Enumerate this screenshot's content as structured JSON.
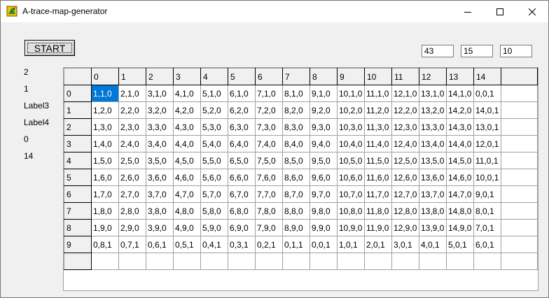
{
  "window": {
    "title": "A-trace-map-generator",
    "controls": {
      "minimize": "minimize-icon",
      "maximize": "maximize-icon",
      "close": "close-icon"
    }
  },
  "toolbar": {
    "start_label": "START"
  },
  "inputs": [
    "43",
    "15",
    "10"
  ],
  "labels": [
    "2",
    "1",
    "Label3",
    "Label4",
    "0",
    "14"
  ],
  "grid": {
    "columns": [
      "0",
      "1",
      "2",
      "3",
      "4",
      "5",
      "6",
      "7",
      "8",
      "9",
      "10",
      "11",
      "12",
      "13",
      "14",
      ""
    ],
    "rows": [
      {
        "header": "0",
        "cells": [
          "1,1,0",
          "2,1,0",
          "3,1,0",
          "4,1,0",
          "5,1,0",
          "6,1,0",
          "7,1,0",
          "8,1,0",
          "9,1,0",
          "10,1,0",
          "11,1,0",
          "12,1,0",
          "13,1,0",
          "14,1,0",
          "0,0,1",
          ""
        ]
      },
      {
        "header": "1",
        "cells": [
          "1,2,0",
          "2,2,0",
          "3,2,0",
          "4,2,0",
          "5,2,0",
          "6,2,0",
          "7,2,0",
          "8,2,0",
          "9,2,0",
          "10,2,0",
          "11,2,0",
          "12,2,0",
          "13,2,0",
          "14,2,0",
          "14,0,1",
          ""
        ]
      },
      {
        "header": "2",
        "cells": [
          "1,3,0",
          "2,3,0",
          "3,3,0",
          "4,3,0",
          "5,3,0",
          "6,3,0",
          "7,3,0",
          "8,3,0",
          "9,3,0",
          "10,3,0",
          "11,3,0",
          "12,3,0",
          "13,3,0",
          "14,3,0",
          "13,0,1",
          ""
        ]
      },
      {
        "header": "3",
        "cells": [
          "1,4,0",
          "2,4,0",
          "3,4,0",
          "4,4,0",
          "5,4,0",
          "6,4,0",
          "7,4,0",
          "8,4,0",
          "9,4,0",
          "10,4,0",
          "11,4,0",
          "12,4,0",
          "13,4,0",
          "14,4,0",
          "12,0,1",
          ""
        ]
      },
      {
        "header": "4",
        "cells": [
          "1,5,0",
          "2,5,0",
          "3,5,0",
          "4,5,0",
          "5,5,0",
          "6,5,0",
          "7,5,0",
          "8,5,0",
          "9,5,0",
          "10,5,0",
          "11,5,0",
          "12,5,0",
          "13,5,0",
          "14,5,0",
          "11,0,1",
          ""
        ]
      },
      {
        "header": "5",
        "cells": [
          "1,6,0",
          "2,6,0",
          "3,6,0",
          "4,6,0",
          "5,6,0",
          "6,6,0",
          "7,6,0",
          "8,6,0",
          "9,6,0",
          "10,6,0",
          "11,6,0",
          "12,6,0",
          "13,6,0",
          "14,6,0",
          "10,0,1",
          ""
        ]
      },
      {
        "header": "6",
        "cells": [
          "1,7,0",
          "2,7,0",
          "3,7,0",
          "4,7,0",
          "5,7,0",
          "6,7,0",
          "7,7,0",
          "8,7,0",
          "9,7,0",
          "10,7,0",
          "11,7,0",
          "12,7,0",
          "13,7,0",
          "14,7,0",
          "9,0,1",
          ""
        ]
      },
      {
        "header": "7",
        "cells": [
          "1,8,0",
          "2,8,0",
          "3,8,0",
          "4,8,0",
          "5,8,0",
          "6,8,0",
          "7,8,0",
          "8,8,0",
          "9,8,0",
          "10,8,0",
          "11,8,0",
          "12,8,0",
          "13,8,0",
          "14,8,0",
          "8,0,1",
          ""
        ]
      },
      {
        "header": "8",
        "cells": [
          "1,9,0",
          "2,9,0",
          "3,9,0",
          "4,9,0",
          "5,9,0",
          "6,9,0",
          "7,9,0",
          "8,9,0",
          "9,9,0",
          "10,9,0",
          "11,9,0",
          "12,9,0",
          "13,9,0",
          "14,9,0",
          "7,0,1",
          ""
        ]
      },
      {
        "header": "9",
        "cells": [
          "0,8,1",
          "0,7,1",
          "0,6,1",
          "0,5,1",
          "0,4,1",
          "0,3,1",
          "0,2,1",
          "0,1,1",
          "0,0,1",
          "1,0,1",
          "2,0,1",
          "3,0,1",
          "4,0,1",
          "5,0,1",
          "6,0,1",
          ""
        ]
      },
      {
        "header": "",
        "cells": [
          "",
          "",
          "",
          "",
          "",
          "",
          "",
          "",
          "",
          "",
          "",
          "",
          "",
          "",
          "",
          ""
        ]
      }
    ],
    "selected_color": "#0078d7"
  }
}
